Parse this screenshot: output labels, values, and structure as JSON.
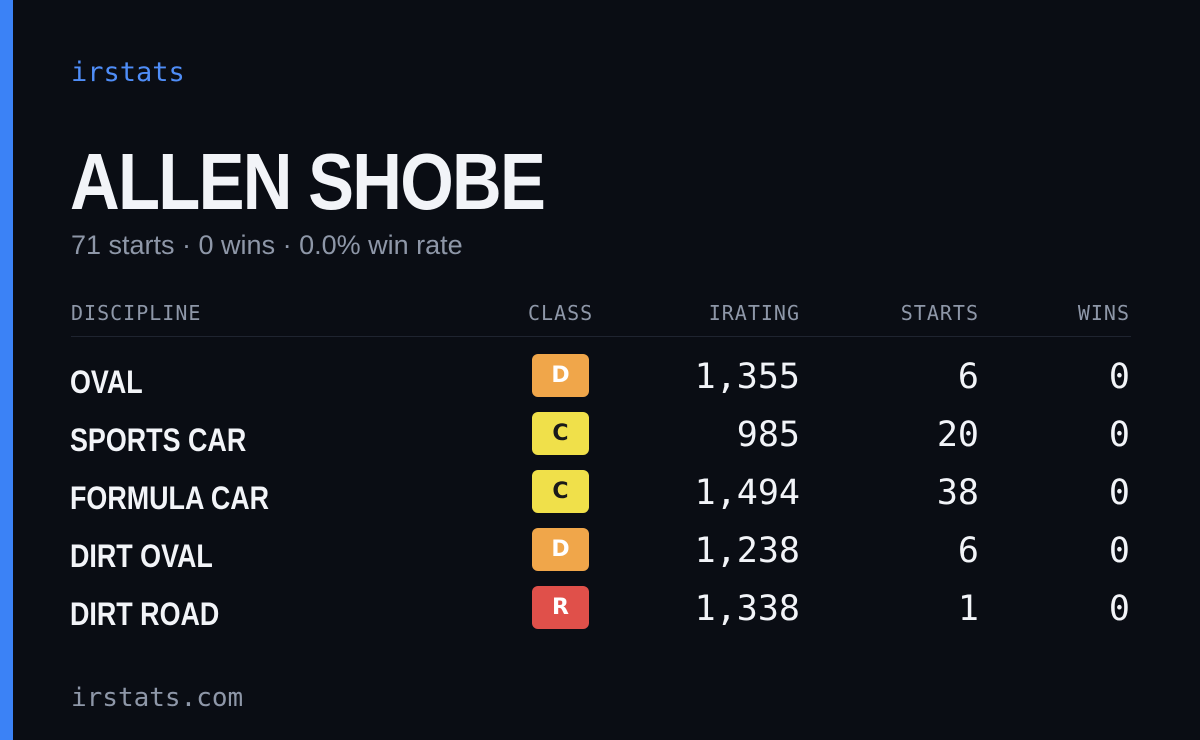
{
  "brand": "irstats",
  "driver": {
    "name": "ALLEN SHOBE",
    "summary": "71 starts · 0 wins · 0.0% win rate"
  },
  "table": {
    "headers": {
      "discipline": "DISCIPLINE",
      "class": "CLASS",
      "irating": "IRATING",
      "starts": "STARTS",
      "wins": "WINS"
    },
    "rows": [
      {
        "discipline": "OVAL",
        "class": "D",
        "class_color": "#f0a64a",
        "class_text_color": "#ffffff",
        "irating": "1,355",
        "starts": "6",
        "wins": "0"
      },
      {
        "discipline": "SPORTS CAR",
        "class": "C",
        "class_color": "#f0e04a",
        "class_text_color": "#1a1a1a",
        "irating": "985",
        "starts": "20",
        "wins": "0"
      },
      {
        "discipline": "FORMULA CAR",
        "class": "C",
        "class_color": "#f0e04a",
        "class_text_color": "#1a1a1a",
        "irating": "1,494",
        "starts": "38",
        "wins": "0"
      },
      {
        "discipline": "DIRT OVAL",
        "class": "D",
        "class_color": "#f0a64a",
        "class_text_color": "#ffffff",
        "irating": "1,238",
        "starts": "6",
        "wins": "0"
      },
      {
        "discipline": "DIRT ROAD",
        "class": "R",
        "class_color": "#e0504a",
        "class_text_color": "#ffffff",
        "irating": "1,338",
        "starts": "1",
        "wins": "0"
      }
    ]
  },
  "footer": "irstats.com",
  "colors": {
    "background": "#0a0d14",
    "accent": "#3b82f6"
  }
}
